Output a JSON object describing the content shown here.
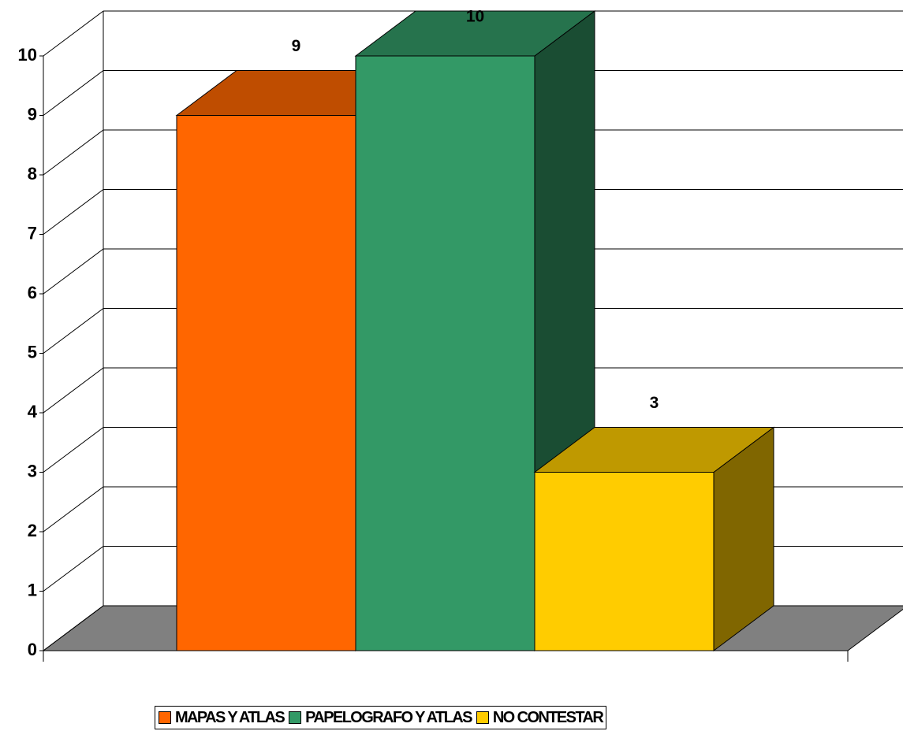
{
  "chart_data": {
    "type": "bar",
    "categories": [
      null
    ],
    "series": [
      {
        "name": "MAPAS Y ATLAS",
        "color": "#ff6600",
        "values": [
          9
        ]
      },
      {
        "name": "PAPELOGRAFO Y ATLAS",
        "color": "#339966",
        "values": [
          10
        ]
      },
      {
        "name": "NO CONTESTAR",
        "color": "#ffcc00",
        "values": [
          3
        ]
      }
    ],
    "ylim": [
      0,
      10
    ],
    "yticks": [
      0,
      1,
      2,
      3,
      4,
      5,
      6,
      7,
      8,
      9,
      10
    ],
    "grid": true,
    "legend": "bottom"
  }
}
